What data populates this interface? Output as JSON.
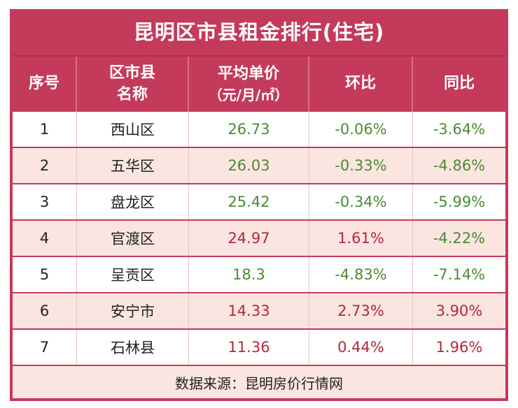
{
  "title": "昆明区市县租金排行(住宅)",
  "headers": {
    "rank": "序号",
    "district_line1": "区市县",
    "district_line2": "名称",
    "price_line1": "平均单价",
    "price_line2": "（元/月/㎡）",
    "mom": "环比",
    "yoy": "同比"
  },
  "rows": [
    {
      "rank": "1",
      "district": "西山区",
      "price": "26.73",
      "mom": "-0.06%",
      "yoy": "-3.64%"
    },
    {
      "rank": "2",
      "district": "五华区",
      "price": "26.03",
      "mom": "-0.33%",
      "yoy": "-4.86%"
    },
    {
      "rank": "3",
      "district": "盘龙区",
      "price": "25.42",
      "mom": "-0.34%",
      "yoy": "-5.99%"
    },
    {
      "rank": "4",
      "district": "官渡区",
      "price": "24.97",
      "mom": "1.61%",
      "yoy": "-4.22%"
    },
    {
      "rank": "5",
      "district": "呈贡区",
      "price": "18.3",
      "mom": "-4.83%",
      "yoy": "-7.14%"
    },
    {
      "rank": "6",
      "district": "安宁市",
      "price": "14.33",
      "mom": "2.73%",
      "yoy": "3.90%"
    },
    {
      "rank": "7",
      "district": "石林县",
      "price": "11.36",
      "mom": "0.44%",
      "yoy": "1.96%"
    }
  ],
  "footer": "数据来源：昆明房价行情网",
  "colors": {
    "frame": "#c43a5b",
    "positive": "#b3283c",
    "negative": "#4c8a34",
    "stripe": "#fbe5e1"
  }
}
